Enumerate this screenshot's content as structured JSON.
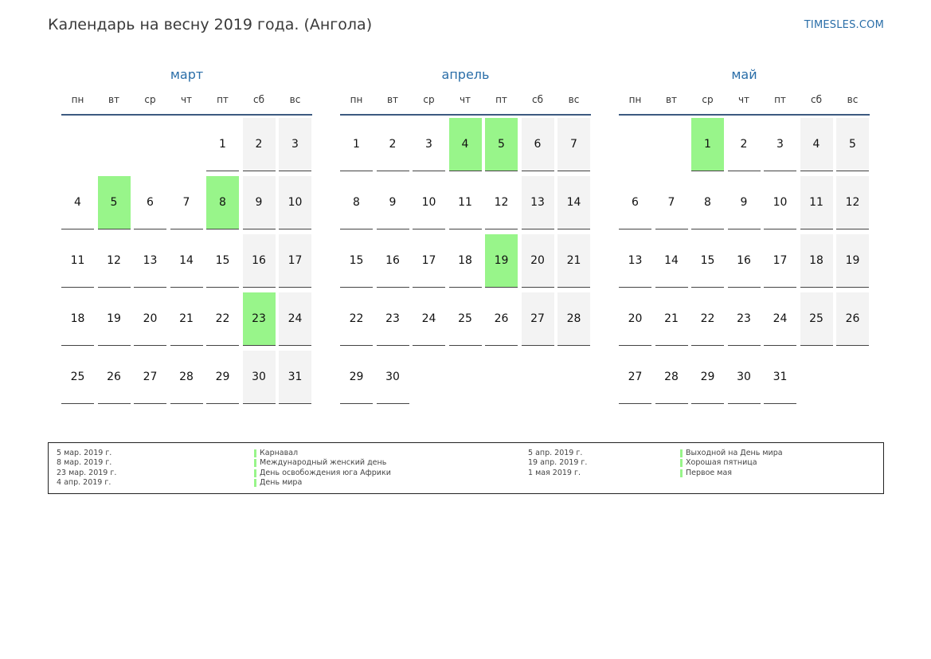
{
  "header": {
    "title": "Календарь на весну 2019 года. (Ангола)",
    "site": "TIMESLES.COM"
  },
  "weekdays": [
    "пн",
    "вт",
    "ср",
    "чт",
    "пт",
    "сб",
    "вс"
  ],
  "colors": {
    "accent": "#2a6ea8",
    "holiday": "#98f58a",
    "weekend": "#f3f3f3"
  },
  "months": [
    {
      "name": "март",
      "first_weekday": 4,
      "days_in_month": 31,
      "holidays": [
        5,
        8,
        23
      ]
    },
    {
      "name": "апрель",
      "first_weekday": 0,
      "days_in_month": 30,
      "holidays": [
        4,
        5,
        19
      ]
    },
    {
      "name": "май",
      "first_weekday": 2,
      "days_in_month": 31,
      "holidays": [
        1
      ]
    }
  ],
  "legend": {
    "left": [
      {
        "date": "5 мар. 2019 г.",
        "name": "Карнавал"
      },
      {
        "date": "8 мар. 2019 г.",
        "name": "Международный женский день"
      },
      {
        "date": "23 мар. 2019 г.",
        "name": "День освобождения юга Африки"
      },
      {
        "date": "4 апр. 2019 г.",
        "name": "День мира"
      }
    ],
    "right": [
      {
        "date": "5 апр. 2019 г.",
        "name": "Выходной на День мира"
      },
      {
        "date": "19 апр. 2019 г.",
        "name": "Хорошая пятница"
      },
      {
        "date": "1 мая 2019 г.",
        "name": "Первое мая"
      }
    ]
  }
}
